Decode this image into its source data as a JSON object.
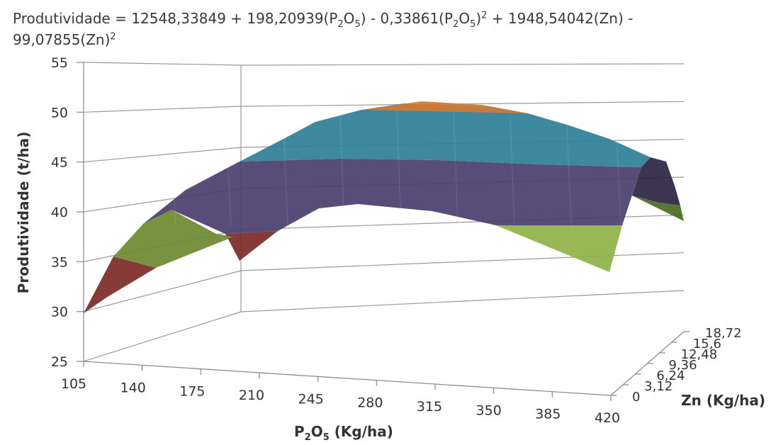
{
  "chart_data": {
    "type": "surface",
    "title": {
      "line1": {
        "prefix": "Produtividade = 12548,33849 + 198,20939(P",
        "sub1": "2",
        "mid1": "O",
        "sub2": "5",
        "mid2": ") - 0,33861(P",
        "sub3": "2",
        "mid3": "O",
        "sub4": "5",
        "mid4": ")",
        "sup1": "2",
        "suffix": " + 1948,54042(Zn) -"
      },
      "line2": {
        "text": "99,07855(Zn)",
        "sup": "2"
      }
    },
    "zlabel": "Produtividade (t/ha)",
    "xlabel": {
      "main": "P",
      "sub1": "2",
      "mid": "O",
      "sub2": "5",
      "rest": " (Kg/ha)"
    },
    "ylabel": "Zn (Kg/ha)",
    "z_ticks": [
      "25",
      "30",
      "35",
      "40",
      "45",
      "50",
      "55"
    ],
    "z_range": [
      25,
      55
    ],
    "x_ticks": [
      "105",
      "140",
      "175",
      "210",
      "245",
      "280",
      "315",
      "350",
      "385",
      "420"
    ],
    "y_ticks": [
      "0",
      "3,12",
      "6,24",
      "9,36",
      "12,48",
      "15,6",
      "18,72"
    ],
    "band_colors": [
      "#7d2a26",
      "#6c8a2f",
      "#4a3d6e",
      "#2f7f96",
      "#d17a35"
    ],
    "side_colors": [
      "#8fb24a",
      "#2a2440",
      "#4b6b23",
      "#6a2a26"
    ]
  }
}
